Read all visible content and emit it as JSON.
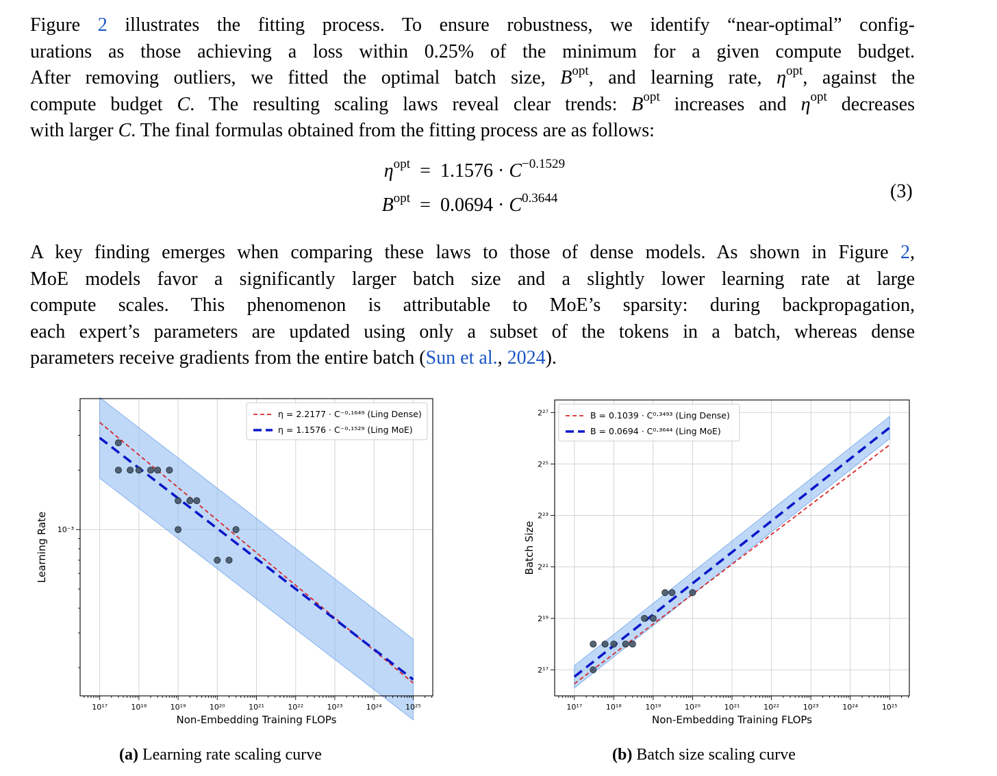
{
  "paragraph1": {
    "l1_a": "Figure ",
    "l1_ref": "2",
    "l1_b": " illustrates the fitting process. To ensure robustness, we identify “near-optimal” config-",
    "l2": "urations as those achieving a loss within 0.25% of the minimum for a given compute budget.",
    "l3_a": "After removing outliers, we fitted the optimal batch size, ",
    "l3_B": "B",
    "l3_sup1": "opt",
    "l3_b": ", and learning rate, ",
    "l3_eta": "η",
    "l3_sup2": "opt",
    "l3_c": ", against the",
    "l4_a": "compute budget ",
    "l4_C": "C",
    "l4_b": ". The resulting scaling laws reveal clear trends: ",
    "l4_B": "B",
    "l4_sup1": "opt",
    "l4_c": " increases and ",
    "l4_eta": "η",
    "l4_sup2": "opt",
    "l4_d": " decreases",
    "l5_a": "with larger ",
    "l5_C": "C",
    "l5_b": ". The final formulas obtained from the fitting process are as follows:"
  },
  "equations": {
    "eq1_lhs": "η",
    "eq1_lhs_sup": "opt",
    "eq1_op": "=",
    "eq1_rhs": "1.1576 · ",
    "eq1_C": "C",
    "eq1_sup": "−0.1529",
    "eq2_lhs": "B",
    "eq2_lhs_sup": "opt",
    "eq2_op": "=",
    "eq2_rhs": "0.0694 · ",
    "eq2_C": "C",
    "eq2_sup": "0.3644",
    "number": "(3)"
  },
  "paragraph2": {
    "l1_a": "A key finding emerges when comparing these laws to those of dense models. As shown in Figure ",
    "l1_ref": "2",
    "l1_b": ",",
    "l2": "MoE models favor a significantly larger batch size and a slightly lower learning rate at large",
    "l3": "compute scales.  This phenomenon is attributable to MoE’s sparsity:  during backpropagation,",
    "l4": "each expert’s parameters are updated using only a subset of the tokens in a batch, whereas dense",
    "l5_a": "parameters receive gradients from the entire batch (",
    "l5_ref1": "Sun et al.",
    "l5_b": ", ",
    "l5_ref2": "2024",
    "l5_c": ")."
  },
  "captions": {
    "a_label": "(a)",
    "a_text": "Learning rate scaling curve",
    "b_label": "(b)",
    "b_text": "Batch size scaling curve"
  },
  "chart_data": [
    {
      "type": "scatter",
      "xlabel": "Non-Embedding Training FLOPs",
      "ylabel": "Learning Rate",
      "x_scale": "log10",
      "y_scale": "log10",
      "xlim": [
        3.16e+16,
        3.16e+25
      ],
      "ylim": [
        0.000144,
        0.0046
      ],
      "x_ticks": [
        1e+17,
        1e+18,
        1e+19,
        1e+20,
        1e+21,
        1e+22,
        1e+23,
        1e+24,
        1e+25
      ],
      "x_tick_labels": [
        "10¹⁷",
        "10¹⁸",
        "10¹⁹",
        "10²⁰",
        "10²¹",
        "10²²",
        "10²³",
        "10²⁴",
        "10²⁵"
      ],
      "y_ticks": [
        0.001
      ],
      "y_tick_labels": [
        "10⁻³"
      ],
      "grid": true,
      "legend_position": "top-right",
      "series": [
        {
          "name": "η = 2.2177 · C⁻⁰·¹⁶⁴⁹ (Ling Dense)",
          "kind": "line",
          "style": "dashed-thin",
          "color": "#d62728",
          "coef": 2.2177,
          "exp": -0.1649
        },
        {
          "name": "η = 1.1576 · C⁻⁰·¹⁵²⁹ (Ling MoE)",
          "kind": "line",
          "style": "dashed-thick",
          "color": "#0a18c8",
          "coef": 1.1576,
          "exp": -0.1529,
          "band_factor": 1.6
        },
        {
          "kind": "points",
          "color": "#445566",
          "points": [
            [
              3e+17,
              0.00275
            ],
            [
              3e+17,
              0.002
            ],
            [
              6e+17,
              0.002
            ],
            [
              1e+18,
              0.002
            ],
            [
              2e+18,
              0.002
            ],
            [
              3e+18,
              0.002
            ],
            [
              6e+18,
              0.002
            ],
            [
              1e+19,
              0.0014
            ],
            [
              1e+19,
              0.001
            ],
            [
              2e+19,
              0.0014
            ],
            [
              3e+19,
              0.0014
            ],
            [
              1e+20,
              0.0007
            ],
            [
              2e+20,
              0.0007
            ],
            [
              3e+20,
              0.001
            ]
          ]
        }
      ]
    },
    {
      "type": "scatter",
      "xlabel": "Non-Embedding Training FLOPs",
      "ylabel": "Batch Size",
      "x_scale": "log10",
      "y_scale": "log2",
      "xlim": [
        3.16e+16,
        3.16e+25
      ],
      "ylim": [
        65000,
        188000000
      ],
      "x_ticks": [
        1e+17,
        1e+18,
        1e+19,
        1e+20,
        1e+21,
        1e+22,
        1e+23,
        1e+24,
        1e+25
      ],
      "x_tick_labels": [
        "10¹⁷",
        "10¹⁸",
        "10¹⁹",
        "10²⁰",
        "10²¹",
        "10²²",
        "10²³",
        "10²⁴",
        "10²⁵"
      ],
      "y_ticks": [
        131072,
        524288,
        2097152,
        8388608,
        33554432,
        134217728
      ],
      "y_tick_labels": [
        "2¹⁷",
        "2¹⁹",
        "2²¹",
        "2²³",
        "2²⁵",
        "2²⁷"
      ],
      "grid": true,
      "legend_position": "top-left",
      "series": [
        {
          "name": "B = 0.1039 · C⁰·³⁴⁹³ (Ling Dense)",
          "kind": "line",
          "style": "dashed-thin",
          "color": "#d62728",
          "coef": 0.1039,
          "exp": 0.3493
        },
        {
          "name": "B = 0.0694 · C⁰·³⁶⁴⁴ (Ling MoE)",
          "kind": "line",
          "style": "dashed-thick",
          "color": "#0a18c8",
          "coef": 0.0694,
          "exp": 0.3644,
          "band_factor": 1.35
        },
        {
          "kind": "points",
          "color": "#445566",
          "points": [
            [
              3e+17,
              262144
            ],
            [
              3e+17,
              131072
            ],
            [
              6e+17,
              262144
            ],
            [
              1e+18,
              262144
            ],
            [
              2e+18,
              262144
            ],
            [
              3e+18,
              262144
            ],
            [
              6e+18,
              524288
            ],
            [
              1e+19,
              524288
            ],
            [
              2e+19,
              1048576
            ],
            [
              3e+19,
              1048576
            ],
            [
              1e+20,
              1048576
            ]
          ]
        }
      ]
    }
  ]
}
